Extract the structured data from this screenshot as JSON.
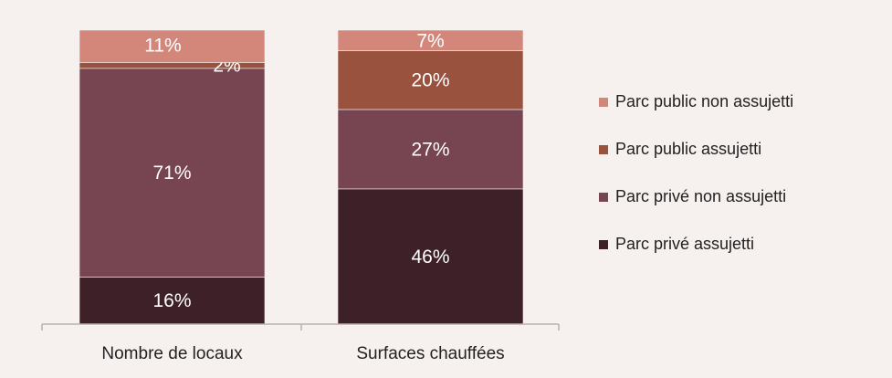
{
  "chart_data": {
    "type": "bar",
    "stacked": true,
    "percent_stacked": true,
    "categories": [
      "Nombre de locaux",
      "Surfaces chauffées"
    ],
    "series": [
      {
        "name": "Parc privé assujetti",
        "values": [
          16,
          46
        ],
        "labels": [
          "16%",
          "46%"
        ],
        "color": "#3e2128"
      },
      {
        "name": "Parc privé non assujetti",
        "values": [
          71,
          27
        ],
        "labels": [
          "71%",
          "27%"
        ],
        "color": "#774552"
      },
      {
        "name": "Parc public assujetti",
        "values": [
          2,
          20
        ],
        "labels": [
          "2%",
          "20%"
        ],
        "color": "#99523d"
      },
      {
        "name": "Parc public non assujetti",
        "values": [
          11,
          7
        ],
        "labels": [
          "11%",
          "7%"
        ],
        "color": "#d3867a"
      }
    ],
    "legend_order": [
      3,
      2,
      1,
      0
    ],
    "legend_position": "right",
    "ylim": [
      0,
      100
    ],
    "grid": false,
    "title": "",
    "xlabel": "",
    "ylabel": ""
  }
}
